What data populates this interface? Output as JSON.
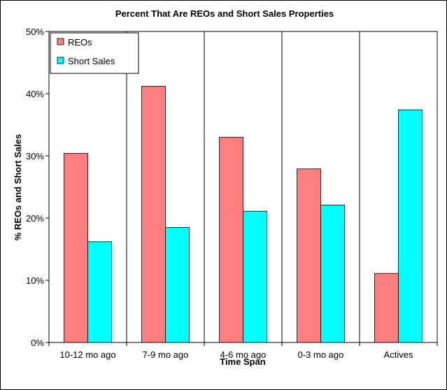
{
  "chart_data": {
    "type": "bar",
    "title": "Percent That Are REOs and Short Sales Properties",
    "xlabel": "Time Span",
    "ylabel": "% REOs and Short Sales",
    "categories": [
      "10-12 mo ago",
      "7-9 mo ago",
      "4-6 mo ago",
      "0-3 mo ago",
      "Actives"
    ],
    "series": [
      {
        "name": "REOs",
        "values": [
          30.4,
          41.2,
          33.0,
          27.9,
          11.1
        ],
        "color": "#ff7f7f"
      },
      {
        "name": "Short Sales",
        "values": [
          16.2,
          18.5,
          21.1,
          22.1,
          37.4
        ],
        "color": "#00ffff"
      }
    ],
    "ylim": [
      0,
      50
    ],
    "yticks": [
      "0%",
      "10%",
      "20%",
      "30%",
      "40%",
      "50%"
    ],
    "grid": "vertical",
    "legend": "top-left"
  }
}
